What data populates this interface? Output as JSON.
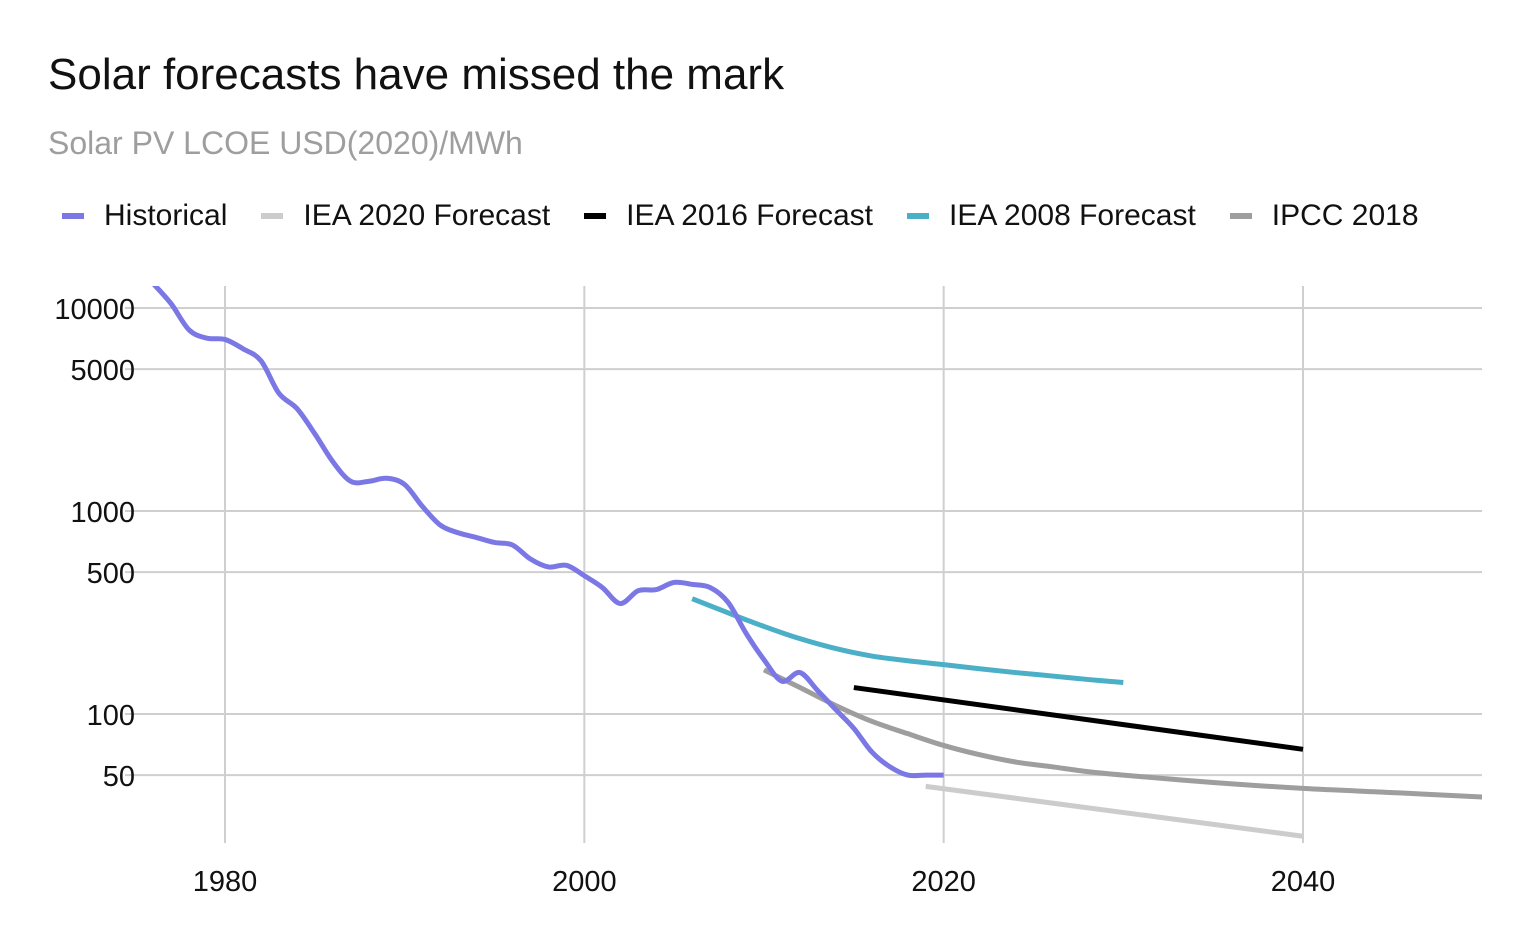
{
  "title": "Solar forecasts have missed the mark",
  "subtitle": "Solar PV LCOE USD(2020)/MWh",
  "chart_data": {
    "type": "line",
    "title": "Solar forecasts have missed the mark",
    "subtitle": "Solar PV LCOE USD(2020)/MWh",
    "xlabel": "",
    "ylabel": "",
    "y_scale": "log",
    "xlim": [
      1976,
      2050
    ],
    "ylim": [
      22,
      14000
    ],
    "x_ticks": [
      1980,
      2000,
      2020,
      2040
    ],
    "y_ticks": [
      10000,
      5000,
      1000,
      500,
      100,
      50
    ],
    "grid": true,
    "legend": "top",
    "series": [
      {
        "name": "Historical",
        "color": "#7b78e6",
        "x": [
          1976,
          1977,
          1978,
          1979,
          1980,
          1981,
          1982,
          1983,
          1984,
          1985,
          1986,
          1987,
          1988,
          1989,
          1990,
          1991,
          1992,
          1993,
          1994,
          1995,
          1996,
          1997,
          1998,
          1999,
          2000,
          2001,
          2002,
          2003,
          2004,
          2005,
          2006,
          2007,
          2008,
          2009,
          2010,
          2011,
          2012,
          2013,
          2014,
          2015,
          2016,
          2017,
          2018,
          2019,
          2020
        ],
        "y": [
          13200,
          10500,
          7800,
          7100,
          7000,
          6300,
          5500,
          3800,
          3200,
          2400,
          1750,
          1400,
          1400,
          1450,
          1350,
          1050,
          850,
          780,
          740,
          700,
          680,
          580,
          530,
          540,
          480,
          420,
          350,
          405,
          410,
          445,
          435,
          420,
          355,
          250,
          185,
          145,
          160,
          130,
          105,
          85,
          65,
          55,
          50,
          50,
          50
        ],
        "values_note": ""
      },
      {
        "name": "IEA 2020 Forecast",
        "color": "#cccccc",
        "x": [
          2019,
          2040
        ],
        "y": [
          44,
          25
        ]
      },
      {
        "name": "IEA 2016 Forecast",
        "color": "#000000",
        "x": [
          2015,
          2040
        ],
        "y": [
          135,
          67
        ]
      },
      {
        "name": "IEA 2008 Forecast",
        "color": "#4aafc7",
        "x": [
          2006,
          2008,
          2010,
          2012,
          2014,
          2016,
          2018,
          2020,
          2022,
          2024,
          2026,
          2028,
          2030
        ],
        "y": [
          370,
          315,
          270,
          235,
          210,
          193,
          183,
          175,
          167,
          160,
          154,
          148,
          143
        ]
      },
      {
        "name": "IPCC 2018",
        "color": "#9e9e9e",
        "x": [
          2010,
          2012,
          2014,
          2016,
          2018,
          2020,
          2022,
          2024,
          2026,
          2028,
          2030,
          2035,
          2040,
          2045,
          2050
        ],
        "y": [
          165,
          135,
          110,
          92,
          80,
          70,
          63,
          58,
          55,
          52,
          50,
          46,
          43,
          41,
          39
        ]
      }
    ]
  }
}
